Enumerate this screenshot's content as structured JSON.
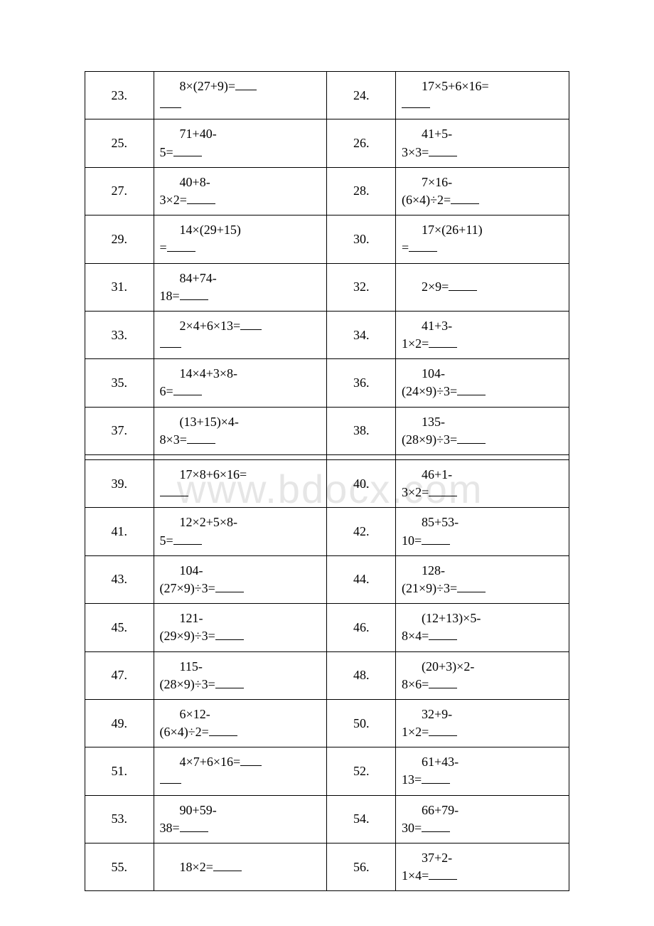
{
  "watermark": "www.bdocx.com",
  "rows": [
    {
      "num1": "23.",
      "expr1_l1": "8×(27+9)=_",
      "expr1_l2": "___",
      "num2": "24.",
      "expr2_l1": "17×5+6×16=",
      "expr2_l2": "____"
    },
    {
      "num1": "25.",
      "expr1_l1": "71+40-",
      "expr1_l2": "5=____",
      "num2": "26.",
      "expr2_l1": "41+5-",
      "expr2_l2": "3×3=____"
    },
    {
      "num1": "27.",
      "expr1_l1": "40+8-",
      "expr1_l2": "3×2=____",
      "num2": "28.",
      "expr2_l1": "7×16-",
      "expr2_l2": "(6×4)÷2=____"
    },
    {
      "num1": "29.",
      "expr1_l1": "14×(29+15)",
      "expr1_l2": "=____",
      "num2": "30.",
      "expr2_l1": "17×(26+11)",
      "expr2_l2": "=____"
    },
    {
      "num1": "31.",
      "expr1_l1": "84+74-",
      "expr1_l2": "18=____",
      "num2": "32.",
      "expr2_l1": "2×9=____",
      "expr2_l2": ""
    },
    {
      "num1": "33.",
      "expr1_l1": "2×4+6×13=_",
      "expr1_l2": "___",
      "num2": "34.",
      "expr2_l1": "41+3-",
      "expr2_l2": "1×2=____"
    },
    {
      "num1": "35.",
      "expr1_l1": "14×4+3×8-",
      "expr1_l2": "6=____",
      "num2": "36.",
      "expr2_l1": "104-",
      "expr2_l2": "(24×9)÷3=____"
    },
    {
      "num1": "37.",
      "expr1_l1": "(13+15)×4-",
      "expr1_l2": "8×3=____",
      "num2": "38.",
      "expr2_l1": "135-",
      "expr2_l2": "(28×9)÷3=____"
    },
    {
      "spacer": true
    },
    {
      "num1": "39.",
      "expr1_l1": "17×8+6×16=",
      "expr1_l2": "____",
      "num2": "40.",
      "expr2_l1": "46+1-",
      "expr2_l2": "3×2=____"
    },
    {
      "num1": "41.",
      "expr1_l1": "12×2+5×8-",
      "expr1_l2": "5=____",
      "num2": "42.",
      "expr2_l1": "85+53-",
      "expr2_l2": "10=____"
    },
    {
      "num1": "43.",
      "expr1_l1": "104-",
      "expr1_l2": "(27×9)÷3=____",
      "num2": "44.",
      "expr2_l1": "128-",
      "expr2_l2": "(21×9)÷3=____"
    },
    {
      "num1": "45.",
      "expr1_l1": "121-",
      "expr1_l2": "(29×9)÷3=____",
      "num2": "46.",
      "expr2_l1": "(12+13)×5-",
      "expr2_l2": "8×4=____"
    },
    {
      "num1": "47.",
      "expr1_l1": "115-",
      "expr1_l2": "(28×9)÷3=____",
      "num2": "48.",
      "expr2_l1": "(20+3)×2-",
      "expr2_l2": "8×6=____"
    },
    {
      "num1": "49.",
      "expr1_l1": "6×12-",
      "expr1_l2": "(6×4)÷2=____",
      "num2": "50.",
      "expr2_l1": "32+9-",
      "expr2_l2": "1×2=____"
    },
    {
      "num1": "51.",
      "expr1_l1": "4×7+6×16=_",
      "expr1_l2": "___",
      "num2": "52.",
      "expr2_l1": "61+43-",
      "expr2_l2": "13=____"
    },
    {
      "num1": "53.",
      "expr1_l1": "90+59-",
      "expr1_l2": "38=____",
      "num2": "54.",
      "expr2_l1": "66+79-",
      "expr2_l2": "30=____"
    },
    {
      "num1": "55.",
      "expr1_l1": "18×2=____",
      "expr1_l2": "",
      "num2": "56.",
      "expr2_l1": "37+2-",
      "expr2_l2": "1×4=____"
    }
  ]
}
